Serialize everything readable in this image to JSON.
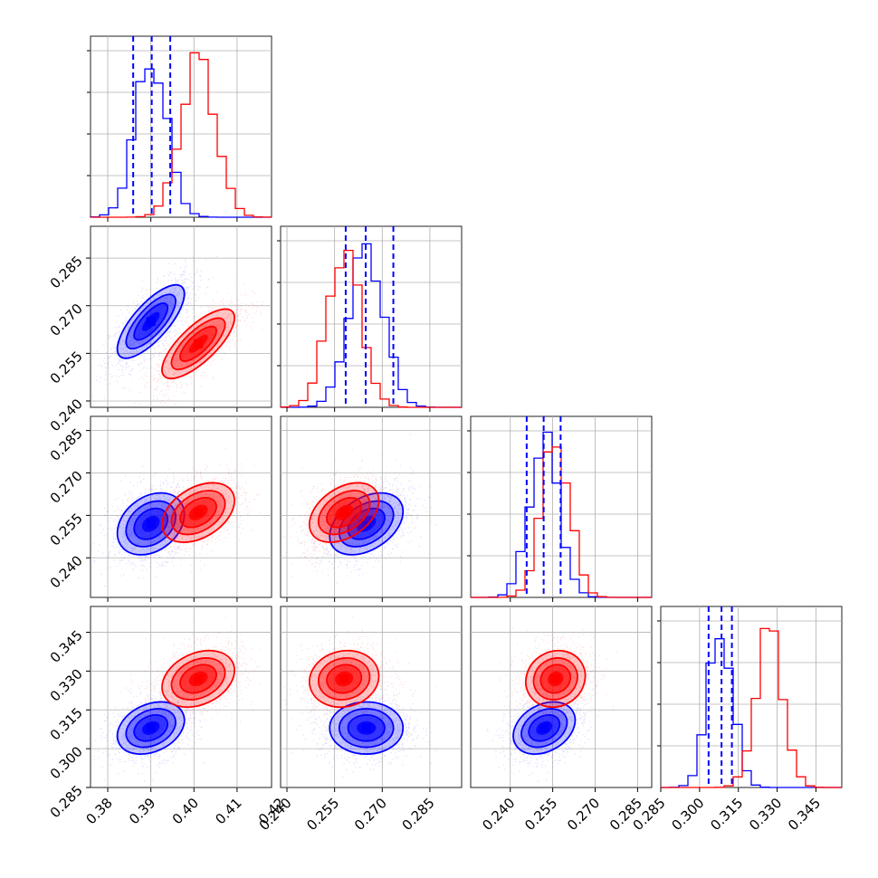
{
  "chart_data": {
    "type": "corner",
    "n_params": 4,
    "series": [
      {
        "name": "",
        "color": "#0000ff",
        "mean": [
          0.39,
          0.265,
          0.252,
          0.308
        ],
        "sd": [
          0.0037,
          0.0055,
          0.0052,
          0.0048
        ],
        "quantiles": [
          [
            0.3859,
            0.3902,
            0.3945
          ],
          [
            0.2585,
            0.2648,
            0.2735
          ],
          [
            0.2458,
            0.2518,
            0.2578
          ],
          [
            0.3035,
            0.3085,
            0.3125
          ]
        ]
      },
      {
        "name": "",
        "color": "#ff0000",
        "mean": [
          0.401,
          0.258,
          0.256,
          0.327
        ],
        "sd": [
          0.004,
          0.0052,
          0.005,
          0.0052
        ]
      }
    ],
    "correlations": [
      {
        "i": 1,
        "j": 0,
        "blue": 0.75,
        "red": 0.75
      },
      {
        "i": 2,
        "j": 0,
        "blue": 0.3,
        "red": 0.4
      },
      {
        "i": 2,
        "j": 1,
        "blue": 0.4,
        "red": 0.4
      },
      {
        "i": 3,
        "j": 0,
        "blue": 0.3,
        "red": 0.3
      },
      {
        "i": 3,
        "j": 1,
        "blue": 0.0,
        "red": 0.1
      },
      {
        "i": 3,
        "j": 2,
        "blue": 0.3,
        "red": 0.1
      }
    ],
    "ranges": [
      [
        0.376,
        0.418
      ],
      [
        0.238,
        0.295
      ],
      [
        0.226,
        0.29
      ],
      [
        0.285,
        0.355
      ]
    ],
    "ticks": [
      [
        "0.38",
        "0.39",
        "0.40",
        "0.41",
        "0.42"
      ],
      [
        "0.240",
        "0.255",
        "0.270",
        "0.285"
      ],
      [
        "0.240",
        "0.255",
        "0.270",
        "0.285"
      ],
      [
        "0.285",
        "0.300",
        "0.315",
        "0.330",
        "0.345"
      ]
    ],
    "grid": true,
    "contour_levels": 3,
    "hist_bins": 20
  }
}
